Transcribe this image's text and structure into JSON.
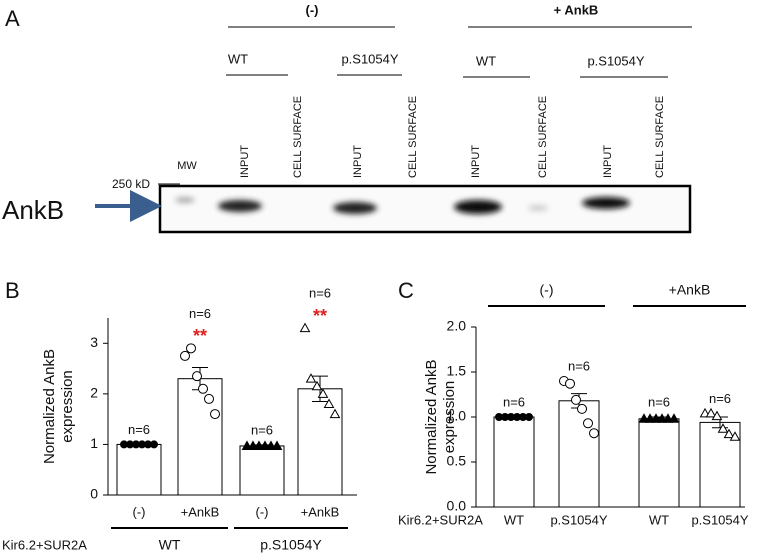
{
  "panel_a": {
    "label": "A",
    "conditions": [
      "(-)",
      "+ AnkB"
    ],
    "constructs": [
      "WT",
      "p.S1054Y",
      "WT",
      "p.S1054Y"
    ],
    "lanes": [
      "MW",
      "INPUT",
      "CELL SURFACE",
      "INPUT",
      "CELL SURFACE",
      "INPUT",
      "CELL SURFACE",
      "INPUT",
      "CELL SURFACE"
    ],
    "marker": "250 kD",
    "protein": "AnkB"
  },
  "chart_data": [
    {
      "type": "bar",
      "panel_label": "B",
      "ylabel": [
        "Normalized AnkB",
        "expression"
      ],
      "categories": [
        "(-)",
        "+AnkB",
        "(-)",
        "+AnkB"
      ],
      "values": [
        1.0,
        2.3,
        0.97,
        2.1
      ],
      "errors": [
        0,
        0.22,
        0.02,
        0.25
      ],
      "points": [
        [
          1,
          1,
          1,
          1,
          1,
          1
        ],
        [
          2.75,
          2.9,
          2.35,
          2.1,
          1.9,
          1.6
        ],
        [
          0.97,
          0.97,
          0.97,
          0.97,
          0.97,
          0.97
        ],
        [
          3.3,
          2.3,
          2.15,
          2.0,
          1.8,
          1.6
        ]
      ],
      "markers": [
        "circle-filled",
        "circle-open",
        "triangle-filled",
        "triangle-open"
      ],
      "n_labels": [
        "n=6",
        "n=6",
        "n=6",
        "n=6"
      ],
      "significance": [
        null,
        "**",
        null,
        "**"
      ],
      "significance_color": "#e02020",
      "group_labels": [
        "WT",
        "p.S1054Y"
      ],
      "group_position": "below",
      "row_label": "Kir6.2+SUR2A",
      "color": "#ffffff",
      "ylim": [
        0,
        3.5
      ],
      "yticks": [
        0,
        1,
        2,
        3
      ]
    },
    {
      "type": "bar",
      "panel_label": "C",
      "ylabel": [
        "Normalized AnkB",
        "expression"
      ],
      "categories": [
        "WT",
        "p.S1054Y",
        "WT",
        "p.S1054Y"
      ],
      "values": [
        1.0,
        1.18,
        0.98,
        0.94
      ],
      "errors": [
        0,
        0.08,
        0.02,
        0.06
      ],
      "points": [
        [
          1,
          1,
          1,
          1,
          1,
          1
        ],
        [
          1.4,
          1.37,
          1.19,
          1.09,
          0.93,
          0.82
        ],
        [
          0.98,
          0.98,
          0.98,
          0.98,
          0.98,
          0.98
        ],
        [
          1.04,
          1.04,
          1.01,
          0.87,
          0.81,
          0.78
        ]
      ],
      "markers": [
        "circle-filled",
        "circle-open",
        "triangle-filled",
        "triangle-open"
      ],
      "n_labels": [
        "n=6",
        "n=6",
        "n=6",
        "n=6"
      ],
      "significance": [
        null,
        null,
        null,
        null
      ],
      "significance_color": "#e02020",
      "group_labels": [
        "(-)",
        "+AnkB"
      ],
      "group_position": "above",
      "row_label": "Kir6.2+SUR2A",
      "color": "#ffffff",
      "ylim": [
        0,
        2.0
      ],
      "yticks": [
        {
          "value": 0,
          "label": "0.0"
        },
        {
          "value": 0.5,
          "label": "0.5"
        },
        {
          "value": 1,
          "label": "1.0"
        },
        {
          "value": 1.5,
          "label": "1.5"
        },
        {
          "value": 2,
          "label": "2.0"
        }
      ]
    }
  ]
}
